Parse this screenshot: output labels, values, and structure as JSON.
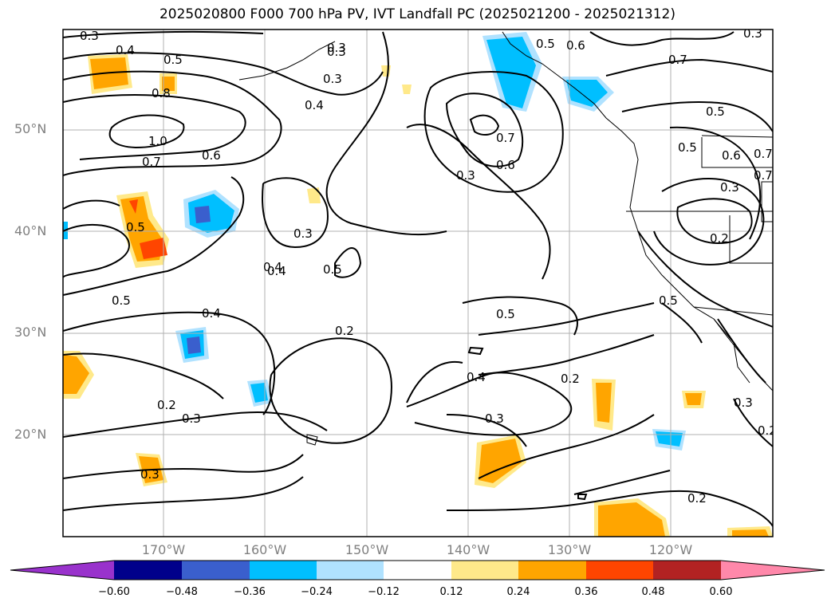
{
  "title": "2025020800 F000 700 hPa PV, IVT Landfall PC (2025021200 - 2025021312)",
  "lat_ticks": [
    "50°N",
    "40°N",
    "30°N",
    "20°N"
  ],
  "lon_ticks": [
    "170°W",
    "160°W",
    "150°W",
    "140°W",
    "130°W",
    "120°W"
  ],
  "colorbar": {
    "tick_labels": [
      "−0.60",
      "−0.48",
      "−0.36",
      "−0.24",
      "−0.12",
      "0.12",
      "0.24",
      "0.36",
      "0.48",
      "0.60"
    ],
    "colors": [
      "#9932cc",
      "#00008b",
      "#3a5fcd",
      "#00bfff",
      "#b0e2ff",
      "#ffffff",
      "#ffe98a",
      "#ffa500",
      "#ff4500",
      "#b22222",
      "#ff88aa"
    ]
  },
  "contour_labels": [
    "0.3",
    "0.4",
    "0.5",
    "0.8",
    "1.0",
    "0.7",
    "0.6",
    "0.3",
    "0.4",
    "0.3",
    "0.5",
    "0.6",
    "0.7",
    "0.3",
    "0.7",
    "0.6",
    "0.3",
    "0.5",
    "0.6",
    "0.7",
    "0.3",
    "0.2",
    "0.5",
    "0.4",
    "0.3",
    "0.5",
    "0.5",
    "0.4",
    "0.2",
    "0.5",
    "0.4",
    "0.2",
    "0.3",
    "0.2",
    "0.3",
    "0.3",
    "0.2",
    "0.3",
    "0.2",
    "0.3",
    "0.5",
    "0.7",
    "0.5",
    "0.4"
  ]
}
